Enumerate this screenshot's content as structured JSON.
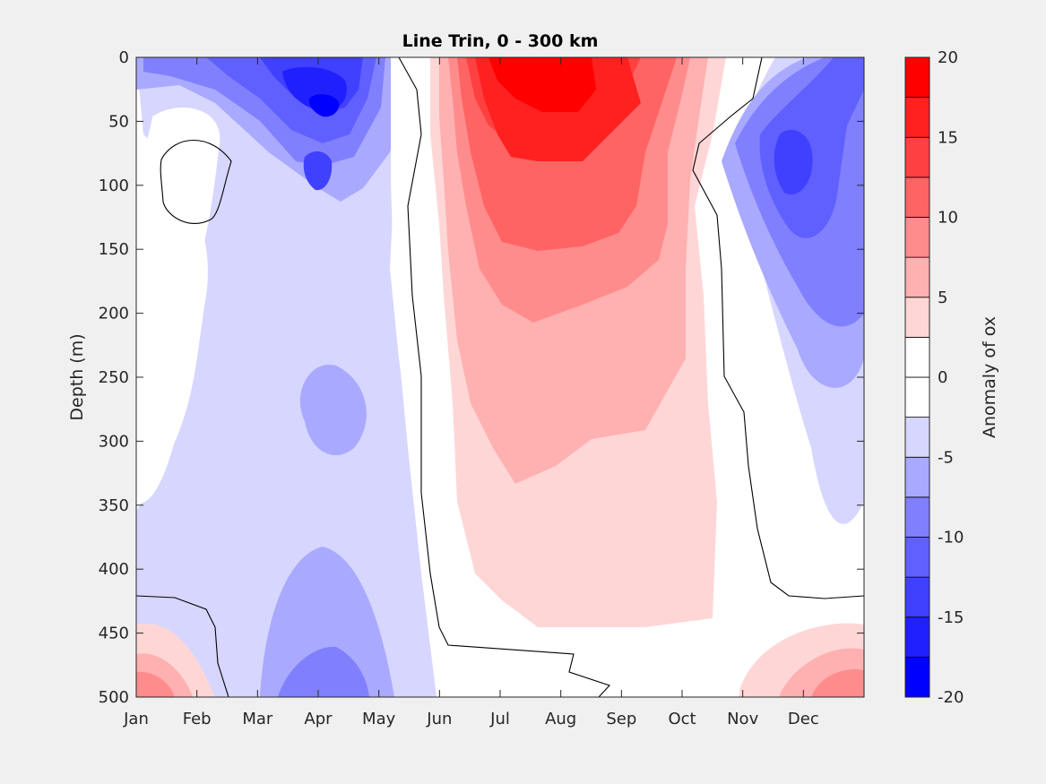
{
  "chart_data": {
    "type": "heatmap",
    "title": "Line Trin, 0 - 300 km",
    "xlabel": "",
    "ylabel": "Depth (m)",
    "colorbar_label": "Anomaly of ox",
    "x_categories": [
      "Jan",
      "Feb",
      "Mar",
      "Apr",
      "May",
      "Jun",
      "Jul",
      "Aug",
      "Sep",
      "Oct",
      "Nov",
      "Dec"
    ],
    "xlim": [
      1,
      13
    ],
    "ylim": [
      0,
      500
    ],
    "y_reversed": true,
    "y_ticks": [
      0,
      50,
      100,
      150,
      200,
      250,
      300,
      350,
      400,
      450,
      500
    ],
    "colorbar": {
      "range": [
        -20,
        20
      ],
      "ticks": [
        20,
        15,
        10,
        5,
        0,
        -5,
        -10,
        -15,
        -20
      ],
      "levels": [
        -20,
        -17.5,
        -15,
        -12.5,
        -10,
        -7.5,
        -5,
        -2.5,
        0,
        2.5,
        5,
        7.5,
        10,
        12.5,
        15,
        17.5,
        20
      ],
      "colors": [
        "#0000ff",
        "#2020ff",
        "#4040ff",
        "#6060ff",
        "#8080ff",
        "#a9a9ff",
        "#d6d6ff",
        "#ffffff",
        "#ffffff",
        "#ffd6d6",
        "#ffb0b0",
        "#ff8c8c",
        "#ff6464",
        "#ff4040",
        "#ff2020",
        "#ff0000"
      ]
    },
    "features": [
      {
        "month": 4.0,
        "depth": 35,
        "anomaly": -19
      },
      {
        "month": 4.05,
        "depth": 100,
        "anomaly": -15
      },
      {
        "month": 7.4,
        "depth": 25,
        "anomaly": 19
      },
      {
        "month": 7.2,
        "depth": 120,
        "anomaly": 13
      },
      {
        "month": 7.4,
        "depth": 250,
        "anomaly": 6
      },
      {
        "month": 7.5,
        "depth": 350,
        "anomaly": 3
      },
      {
        "month": 12.0,
        "depth": 100,
        "anomaly": -13
      },
      {
        "month": 11.8,
        "depth": 250,
        "anomaly": -6
      },
      {
        "month": 1.5,
        "depth": 120,
        "anomaly": -4
      },
      {
        "month": 2.0,
        "depth": 90,
        "anomaly": 1
      },
      {
        "month": 3.9,
        "depth": 270,
        "anomaly": -6
      },
      {
        "month": 3.9,
        "depth": 480,
        "anomaly": -8
      },
      {
        "month": 1.3,
        "depth": 490,
        "anomaly": 9
      },
      {
        "month": 12.6,
        "depth": 490,
        "anomaly": 9
      }
    ]
  }
}
